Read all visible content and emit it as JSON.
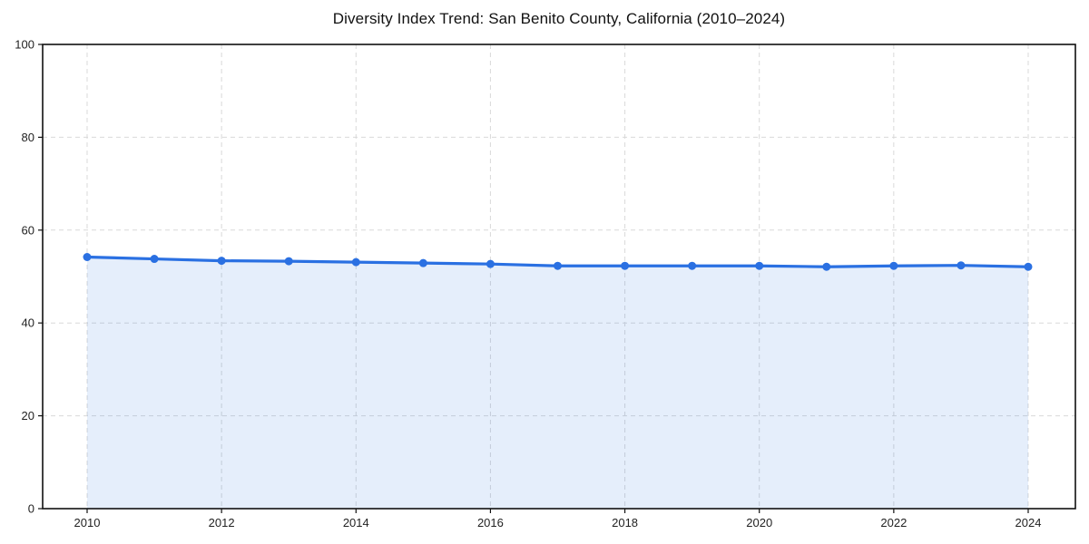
{
  "chart_data": {
    "type": "line",
    "title": "Diversity Index Trend: San Benito County, California (2010–2024)",
    "x": [
      2010,
      2011,
      2012,
      2013,
      2014,
      2015,
      2016,
      2017,
      2018,
      2019,
      2020,
      2021,
      2022,
      2023,
      2024
    ],
    "series": [
      {
        "name": "Diversity Index",
        "values": [
          54.2,
          53.8,
          53.4,
          53.3,
          53.1,
          52.9,
          52.7,
          52.3,
          52.3,
          52.3,
          52.3,
          52.1,
          52.3,
          52.4,
          52.1
        ]
      }
    ],
    "xlabel": "",
    "ylabel": "",
    "ylim": [
      0,
      100
    ],
    "yticks": [
      0,
      20,
      40,
      60,
      80,
      100
    ],
    "xticks": [
      2010,
      2012,
      2014,
      2016,
      2018,
      2020,
      2022,
      2024
    ],
    "grid": true,
    "grid_style": "dashed",
    "legend": "none",
    "marker": "circle",
    "colors": {
      "line": "#2a70e2",
      "marker": "#2a70e2",
      "area_fill": "rgba(42,112,226,0.12)",
      "grid": "#d9d9d9",
      "axis": "#111111",
      "tick_label": "#222222",
      "plot_background": "#ffffff"
    }
  }
}
